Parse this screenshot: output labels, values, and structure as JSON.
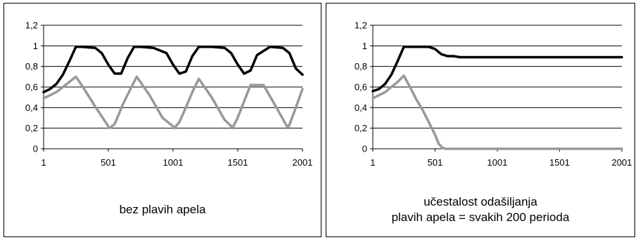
{
  "chart_data": [
    {
      "type": "line",
      "caption": [
        "bez plavih apela"
      ],
      "x_ticks": [
        "1",
        "501",
        "1001",
        "1501",
        "2001"
      ],
      "y_ticks": [
        "0",
        "0,2",
        "0,4",
        "0,6",
        "0,8",
        "1",
        "1,2"
      ],
      "xlim": [
        1,
        2001
      ],
      "ylim": [
        0,
        1.2
      ],
      "grid": "horizontal",
      "series": [
        {
          "color": "#000000",
          "x": [
            1,
            50,
            100,
            150,
            200,
            250,
            300,
            400,
            450,
            500,
            550,
            600,
            650,
            700,
            750,
            850,
            950,
            1000,
            1050,
            1100,
            1150,
            1200,
            1300,
            1400,
            1450,
            1500,
            1550,
            1600,
            1650,
            1750,
            1850,
            1900,
            1950,
            2001
          ],
          "y": [
            0.55,
            0.58,
            0.63,
            0.72,
            0.85,
            0.99,
            0.99,
            0.98,
            0.93,
            0.82,
            0.73,
            0.73,
            0.88,
            0.99,
            0.99,
            0.98,
            0.93,
            0.82,
            0.73,
            0.75,
            0.9,
            0.99,
            0.99,
            0.98,
            0.93,
            0.82,
            0.73,
            0.76,
            0.91,
            0.99,
            0.98,
            0.93,
            0.78,
            0.72
          ]
        },
        {
          "color": "#999999",
          "x": [
            1,
            100,
            200,
            250,
            300,
            400,
            500,
            510,
            550,
            620,
            720,
            820,
            920,
            1000,
            1010,
            1050,
            1100,
            1150,
            1200,
            1300,
            1400,
            1450,
            1460,
            1500,
            1550,
            1600,
            1700,
            1800,
            1880,
            1890,
            1950,
            2001
          ],
          "y": [
            0.49,
            0.55,
            0.65,
            0.7,
            0.61,
            0.41,
            0.22,
            0.2,
            0.24,
            0.45,
            0.7,
            0.52,
            0.3,
            0.22,
            0.2,
            0.26,
            0.4,
            0.55,
            0.68,
            0.5,
            0.28,
            0.22,
            0.2,
            0.3,
            0.46,
            0.62,
            0.62,
            0.4,
            0.22,
            0.2,
            0.4,
            0.58
          ]
        }
      ]
    },
    {
      "type": "line",
      "caption": [
        "učestalost odašiljanja",
        "plavih apela = svakih 200 perioda"
      ],
      "x_ticks": [
        "1",
        "501",
        "1001",
        "1501",
        "2001"
      ],
      "y_ticks": [
        "0",
        "0,2",
        "0,4",
        "0,6",
        "0,8",
        "1",
        "1,2"
      ],
      "xlim": [
        1,
        2001
      ],
      "ylim": [
        0,
        1.2
      ],
      "grid": "horizontal",
      "series": [
        {
          "color": "#000000",
          "x": [
            1,
            50,
            100,
            150,
            200,
            250,
            300,
            350,
            400,
            450,
            500,
            550,
            600,
            650,
            700,
            800,
            1000,
            1500,
            2001
          ],
          "y": [
            0.56,
            0.58,
            0.63,
            0.72,
            0.85,
            0.99,
            0.99,
            0.99,
            0.99,
            0.99,
            0.97,
            0.92,
            0.9,
            0.9,
            0.89,
            0.89,
            0.89,
            0.89,
            0.89
          ]
        },
        {
          "color": "#999999",
          "x": [
            1,
            100,
            200,
            250,
            300,
            350,
            400,
            450,
            500,
            530,
            560,
            580,
            600,
            700,
            1000,
            1500,
            2001
          ],
          "y": [
            0.49,
            0.55,
            0.65,
            0.71,
            0.6,
            0.48,
            0.38,
            0.26,
            0.14,
            0.05,
            0.01,
            0.0,
            0.0,
            0.0,
            0.0,
            0.0,
            0.0
          ]
        }
      ]
    }
  ]
}
